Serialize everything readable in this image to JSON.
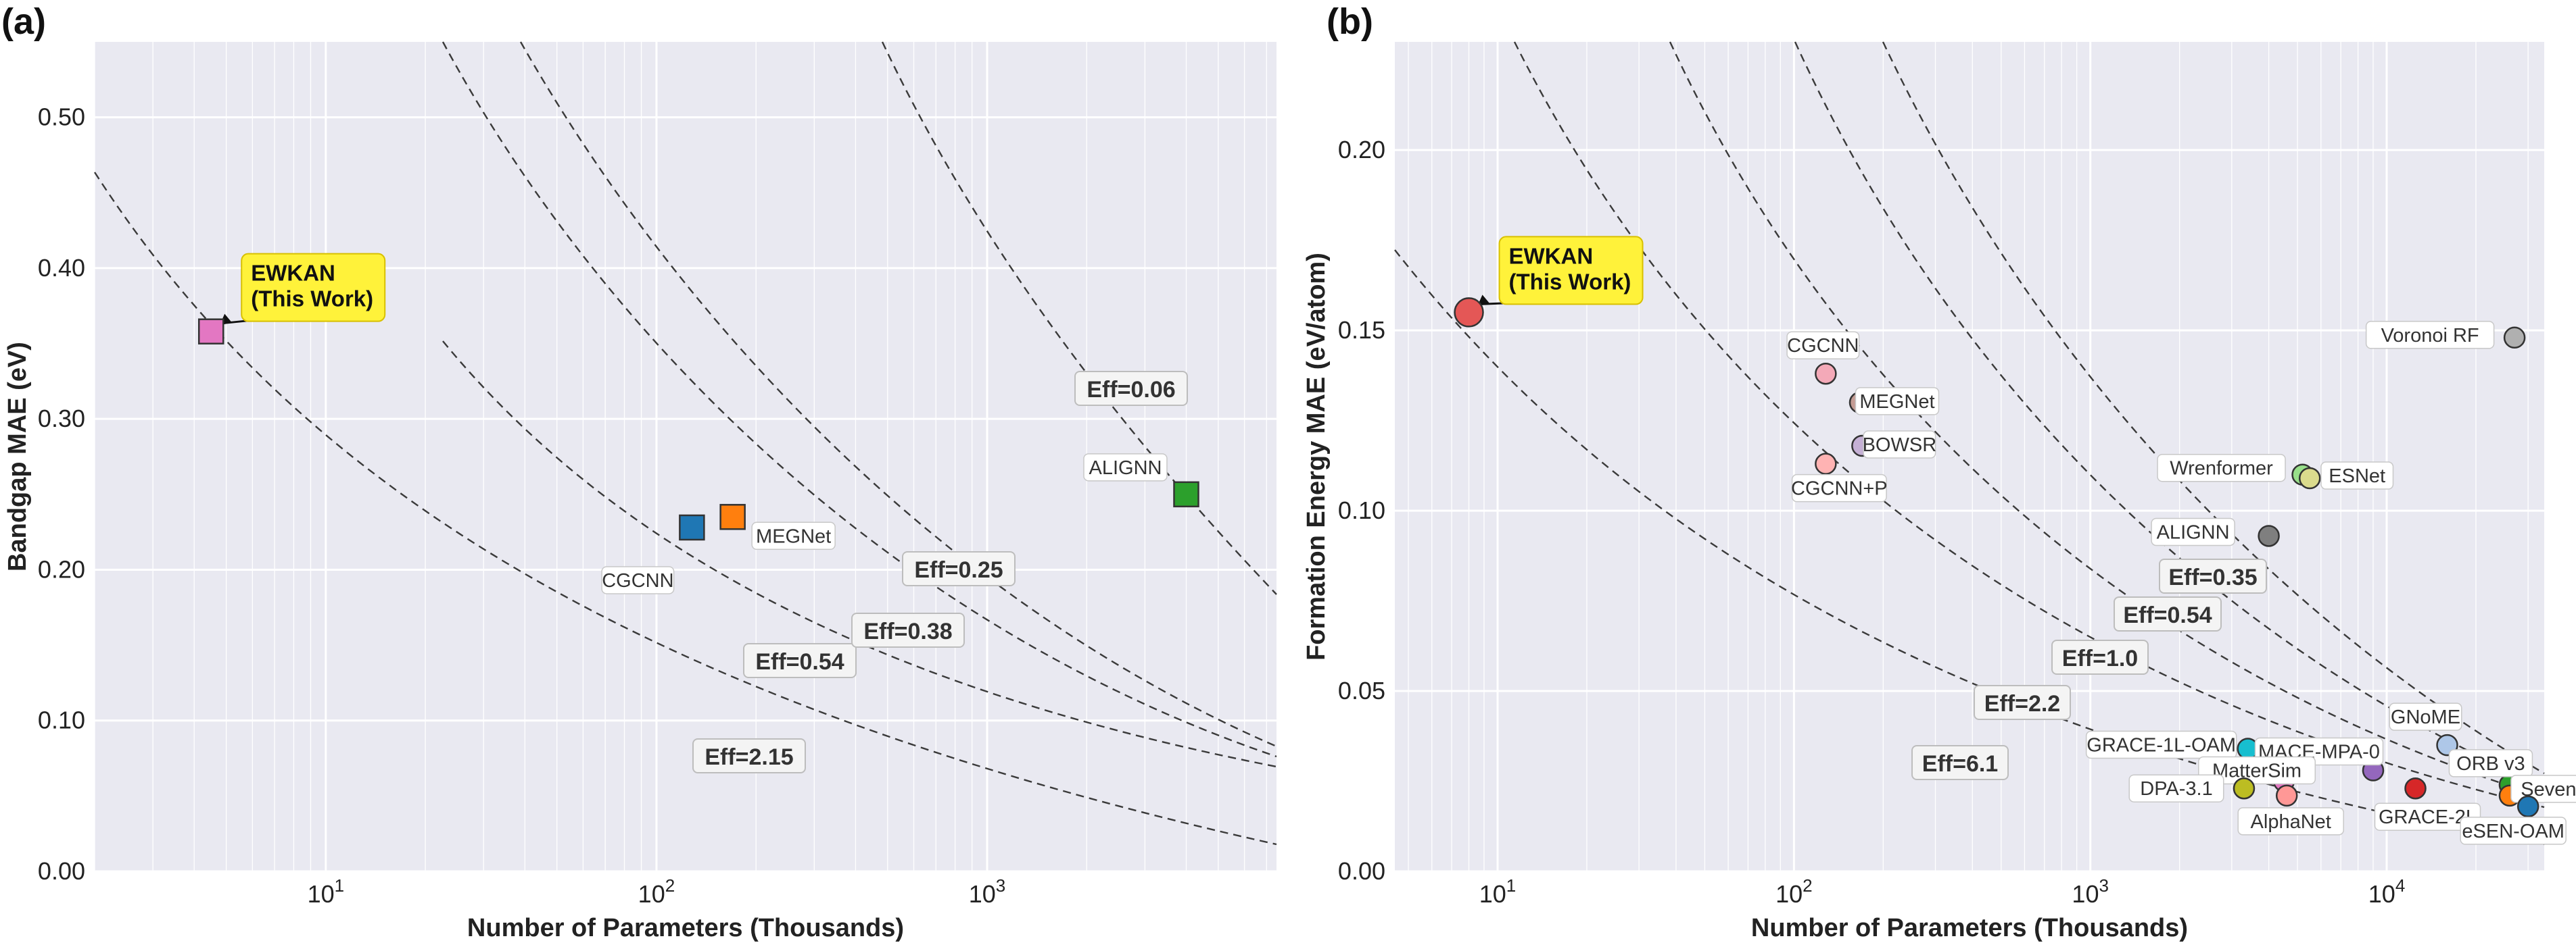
{
  "chart_data": [
    {
      "panel": "(a)",
      "type": "scatter",
      "xscale": "log",
      "xlabel": "Number of Parameters (Thousands)",
      "ylabel": "Bandgap MAE (eV)",
      "xlim": [
        2,
        7500
      ],
      "ylim": [
        0,
        0.55
      ],
      "xticks": [
        {
          "value": 10,
          "base": "10",
          "exp": "1"
        },
        {
          "value": 100,
          "base": "10",
          "exp": "2"
        },
        {
          "value": 1000,
          "base": "10",
          "exp": "3"
        }
      ],
      "yticks": [
        {
          "value": 0,
          "label": "0.00"
        },
        {
          "value": 0.1,
          "label": "0.10"
        },
        {
          "value": 0.2,
          "label": "0.20"
        },
        {
          "value": 0.3,
          "label": "0.30"
        },
        {
          "value": 0.4,
          "label": "0.40"
        },
        {
          "value": 0.5,
          "label": "0.50"
        }
      ],
      "marker": "square",
      "points": [
        {
          "name": "EWKAN\n(This Work)",
          "x": 4.5,
          "y": 0.358,
          "color": "#e377c2",
          "highlight": true
        },
        {
          "name": "CGCNN",
          "x": 128,
          "y": 0.228,
          "color": "#1f77b4"
        },
        {
          "name": "MEGNet",
          "x": 170,
          "y": 0.235,
          "color": "#ff7f0e"
        },
        {
          "name": "ALIGNN",
          "x": 4000,
          "y": 0.25,
          "color": "#2ca02c"
        }
      ],
      "efficiency_curves": [
        {
          "label": "Eff=2.15"
        },
        {
          "label": "Eff=0.54"
        },
        {
          "label": "Eff=0.38"
        },
        {
          "label": "Eff=0.25"
        },
        {
          "label": "Eff=0.06"
        }
      ]
    },
    {
      "panel": "(b)",
      "type": "scatter",
      "xscale": "log",
      "xlabel": "Number of Parameters (Thousands)",
      "ylabel": "Formation Energy MAE (eV/atom)",
      "xlim": [
        4.5,
        34000
      ],
      "ylim": [
        0,
        0.23
      ],
      "xticks": [
        {
          "value": 10,
          "base": "10",
          "exp": "1"
        },
        {
          "value": 100,
          "base": "10",
          "exp": "2"
        },
        {
          "value": 1000,
          "base": "10",
          "exp": "3"
        },
        {
          "value": 10000,
          "base": "10",
          "exp": "4"
        }
      ],
      "yticks": [
        {
          "value": 0,
          "label": "0.00"
        },
        {
          "value": 0.05,
          "label": "0.05"
        },
        {
          "value": 0.1,
          "label": "0.10"
        },
        {
          "value": 0.15,
          "label": "0.15"
        },
        {
          "value": 0.2,
          "label": "0.20"
        }
      ],
      "marker": "circle",
      "points": [
        {
          "name": "EWKAN\n(This Work)",
          "x": 8,
          "y": 0.155,
          "color": "#e45756",
          "highlight": true
        },
        {
          "name": "CGCNN",
          "x": 128,
          "y": 0.138,
          "color": "#f4a9b8"
        },
        {
          "name": "MEGNet",
          "x": 167,
          "y": 0.13,
          "color": "#c49c94"
        },
        {
          "name": "BOWSR",
          "x": 170,
          "y": 0.118,
          "color": "#c5b0d5"
        },
        {
          "name": "CGCNN+P",
          "x": 128,
          "y": 0.113,
          "color": "#ffb3b3"
        },
        {
          "name": "Voronoi RF",
          "x": 27000,
          "y": 0.148,
          "color": "#b0b0b0"
        },
        {
          "name": "Wrenformer",
          "x": 5200,
          "y": 0.11,
          "color": "#98df8a"
        },
        {
          "name": "ESNet",
          "x": 5500,
          "y": 0.109,
          "color": "#dbdb8d"
        },
        {
          "name": "ALIGNN",
          "x": 4000,
          "y": 0.093,
          "color": "#7f7f7f"
        },
        {
          "name": "GNoME",
          "x": 16000,
          "y": 0.035,
          "color": "#aec7e8"
        },
        {
          "name": "GRACE-1L-OAM",
          "x": 3400,
          "y": 0.034,
          "color": "#17becf"
        },
        {
          "name": "MACE-MPA-0",
          "x": 9000,
          "y": 0.028,
          "color": "#9467bd"
        },
        {
          "name": "ORB v3",
          "x": 26000,
          "y": 0.024,
          "color": "#2ca02c"
        },
        {
          "name": "MatterSim",
          "x": 4500,
          "y": 0.025,
          "color": "#e377c2"
        },
        {
          "name": "DPA-3.1",
          "x": 3300,
          "y": 0.023,
          "color": "#bcbd22"
        },
        {
          "name": "AlphaNet",
          "x": 4600,
          "y": 0.021,
          "color": "#ff9896"
        },
        {
          "name": "GRACE-2L",
          "x": 12500,
          "y": 0.023,
          "color": "#d62728"
        },
        {
          "name": "SevenNet",
          "x": 26000,
          "y": 0.021,
          "color": "#ff7f0e"
        },
        {
          "name": "eSEN-OAM",
          "x": 30000,
          "y": 0.018,
          "color": "#1f77b4"
        }
      ],
      "efficiency_curves": [
        {
          "label": "Eff=6.1"
        },
        {
          "label": "Eff=2.2"
        },
        {
          "label": "Eff=1.0"
        },
        {
          "label": "Eff=0.54"
        },
        {
          "label": "Eff=0.35"
        }
      ]
    }
  ]
}
